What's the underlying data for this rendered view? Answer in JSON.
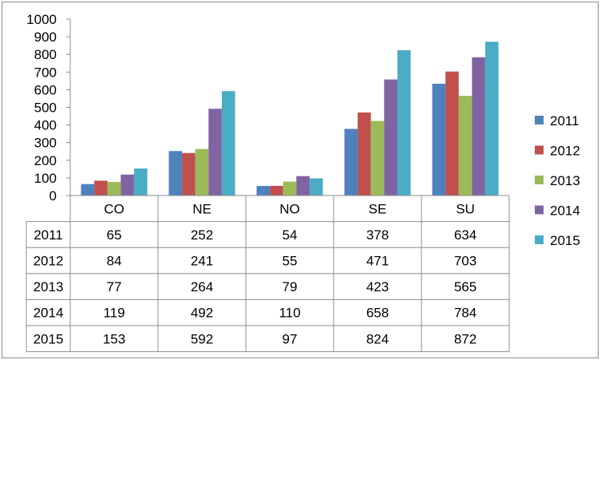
{
  "chart_data": {
    "type": "bar",
    "categories": [
      "CO",
      "NE",
      "NO",
      "SE",
      "SU"
    ],
    "series": [
      {
        "name": "2011",
        "color": "#4F81BD",
        "values": [
          65,
          252,
          54,
          378,
          634
        ]
      },
      {
        "name": "2012",
        "color": "#C0504D",
        "values": [
          84,
          241,
          55,
          471,
          703
        ]
      },
      {
        "name": "2013",
        "color": "#9BBB59",
        "values": [
          77,
          264,
          79,
          423,
          565
        ]
      },
      {
        "name": "2014",
        "color": "#8064A2",
        "values": [
          119,
          492,
          110,
          658,
          784
        ]
      },
      {
        "name": "2015",
        "color": "#4BACC6",
        "values": [
          153,
          592,
          97,
          824,
          872
        ]
      }
    ],
    "ylim": [
      0,
      1000
    ],
    "yticks": [
      "0",
      "100",
      "200",
      "300",
      "400",
      "500",
      "600",
      "700",
      "800",
      "900",
      "1000"
    ],
    "grid": false,
    "legend": "right",
    "data_table": true
  }
}
